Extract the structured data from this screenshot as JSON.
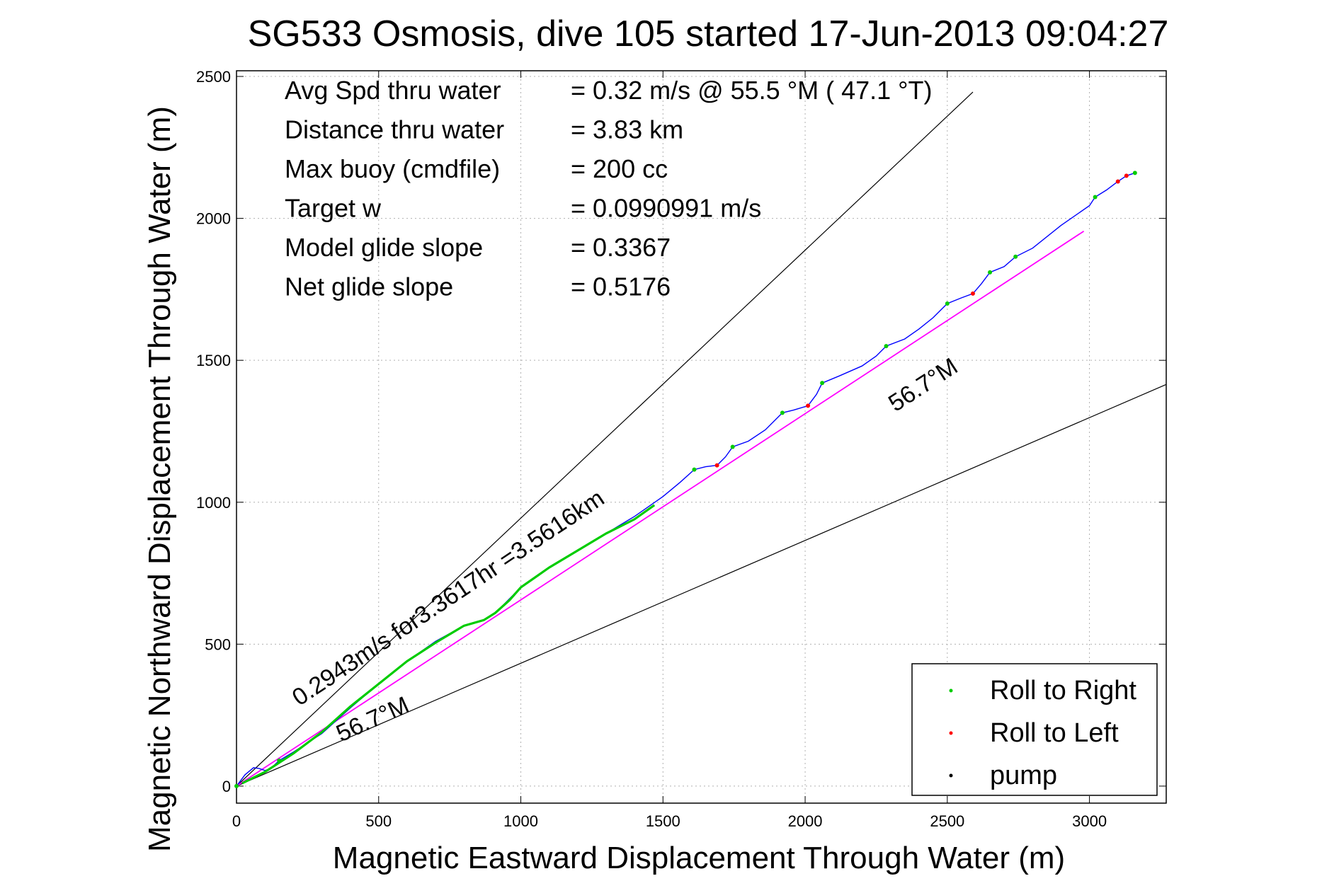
{
  "chart_data": {
    "type": "line",
    "title": "SG533 Osmosis, dive 105 started 17-Jun-2013 09:04:27",
    "xlabel": "Magnetic Eastward Displacement Through Water (m)",
    "ylabel": "Magnetic Northward Displacement Through Water (m)",
    "xlim": [
      0,
      3270
    ],
    "ylim": [
      -60,
      2520
    ],
    "xticks": [
      0,
      500,
      1000,
      1500,
      2000,
      2500,
      3000
    ],
    "yticks": [
      0,
      500,
      1000,
      1500,
      2000,
      2500
    ],
    "grid": true,
    "legend_position": "bottom-right",
    "colors": {
      "track": "#0000ff",
      "segment": "#00cc00",
      "heading": "#ff00ff",
      "roll_right": "#00cc00",
      "roll_left": "#ff0000",
      "pump": "#000000",
      "guide": "#000000"
    },
    "stats": [
      {
        "label": "Avg Spd thru water",
        "value": "=  0.32 m/s @  55.5 °M ( 47.1 °T)"
      },
      {
        "label": "Distance thru water",
        "value": "=  3.83 km"
      },
      {
        "label": "Max buoy (cmdfile)",
        "value": "= 200 cc"
      },
      {
        "label": "Target w",
        "value": "= 0.0990991 m/s"
      },
      {
        "label": "Model glide slope",
        "value": "= 0.3367"
      },
      {
        "label": "Net glide slope",
        "value": "= 0.5176"
      }
    ],
    "annotations": {
      "speed_label": "0.2943m/s for3.3617hr =3.5616km",
      "heading_label_lower": "56.7°M",
      "heading_label_upper": "56.7°M"
    },
    "legend": [
      {
        "name": "Roll to Right",
        "color": "#00cc00"
      },
      {
        "name": "Roll to Left",
        "color": "#ff0000"
      },
      {
        "name": "pump",
        "color": "#000000"
      }
    ],
    "series": [
      {
        "name": "track",
        "x": [
          0,
          30,
          60,
          80,
          100,
          120,
          150,
          200,
          300,
          400,
          500,
          600,
          700,
          800,
          870,
          910,
          950,
          1000,
          1100,
          1200,
          1300,
          1400,
          1500,
          1560,
          1610,
          1650,
          1690,
          1720,
          1745,
          1800,
          1860,
          1920,
          1960,
          2010,
          2040,
          2060,
          2120,
          2200,
          2250,
          2285,
          2350,
          2400,
          2450,
          2500,
          2550,
          2590,
          2620,
          2650,
          2700,
          2740,
          2800,
          2900,
          3000,
          3020,
          3060,
          3100,
          3130,
          3160
        ],
        "y": [
          0,
          40,
          65,
          62,
          55,
          62,
          90,
          120,
          185,
          275,
          360,
          440,
          510,
          565,
          585,
          610,
          650,
          700,
          770,
          830,
          890,
          950,
          1020,
          1070,
          1115,
          1125,
          1130,
          1160,
          1195,
          1215,
          1255,
          1315,
          1325,
          1340,
          1380,
          1420,
          1445,
          1480,
          1515,
          1550,
          1575,
          1610,
          1650,
          1700,
          1720,
          1735,
          1770,
          1810,
          1830,
          1865,
          1895,
          1975,
          2045,
          2075,
          2100,
          2130,
          2150,
          2160
        ]
      },
      {
        "name": "roll_right_points",
        "x": [
          0,
          150,
          1610,
          1745,
          1920,
          2060,
          2285,
          2500,
          2650,
          2740,
          3020,
          3160
        ],
        "y": [
          0,
          90,
          1115,
          1195,
          1315,
          1420,
          1550,
          1700,
          1810,
          1865,
          2075,
          2160
        ]
      },
      {
        "name": "roll_left_points",
        "x": [
          1690,
          2010,
          2590,
          3100,
          3130
        ],
        "y": [
          1130,
          1340,
          1735,
          2130,
          2150
        ]
      },
      {
        "name": "net_heading_line",
        "x": [
          0,
          2980
        ],
        "y": [
          0,
          1955
        ]
      },
      {
        "name": "upper_bound_line",
        "x": [
          0,
          2590
        ],
        "y": [
          0,
          2445
        ]
      },
      {
        "name": "lower_bound_line",
        "x": [
          0,
          3270
        ],
        "y": [
          0,
          1415
        ]
      },
      {
        "name": "green_segment",
        "x": [
          20,
          100,
          200,
          300,
          400,
          500,
          600,
          700,
          800,
          870,
          910,
          960,
          1000,
          1100,
          1200,
          1300,
          1400,
          1470
        ],
        "y": [
          10,
          50,
          115,
          190,
          280,
          360,
          440,
          505,
          565,
          585,
          610,
          655,
          700,
          770,
          830,
          890,
          940,
          990
        ]
      }
    ]
  }
}
